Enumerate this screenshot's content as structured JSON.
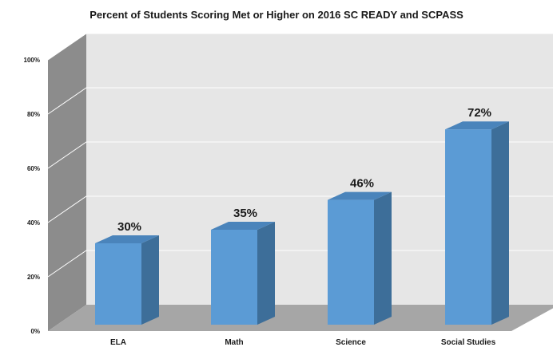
{
  "chart_data": {
    "type": "bar",
    "title": "Percent of Students Scoring Met or Higher on 2016 SC READY and SCPASS",
    "categories": [
      "ELA",
      "Math",
      "Science",
      "Social Studies"
    ],
    "values": [
      30,
      35,
      46,
      72
    ],
    "data_labels": [
      "30%",
      "35%",
      "46%",
      "72%"
    ],
    "y_ticks": [
      0,
      20,
      40,
      60,
      80,
      100
    ],
    "y_tick_labels": [
      "0%",
      "20%",
      "40%",
      "60%",
      "80%",
      "100%"
    ],
    "ylim": [
      0,
      100
    ],
    "xlabel": "",
    "ylabel": "",
    "grid": true,
    "three_d": true,
    "colors": {
      "bar_front": "#5b9bd5",
      "bar_side": "#3d6e99",
      "bar_top": "#4a84bb",
      "back_wall": "#e6e6e6",
      "side_wall": "#8c8c8c",
      "floor": "#a6a6a6",
      "gridline": "#ffffff"
    }
  }
}
